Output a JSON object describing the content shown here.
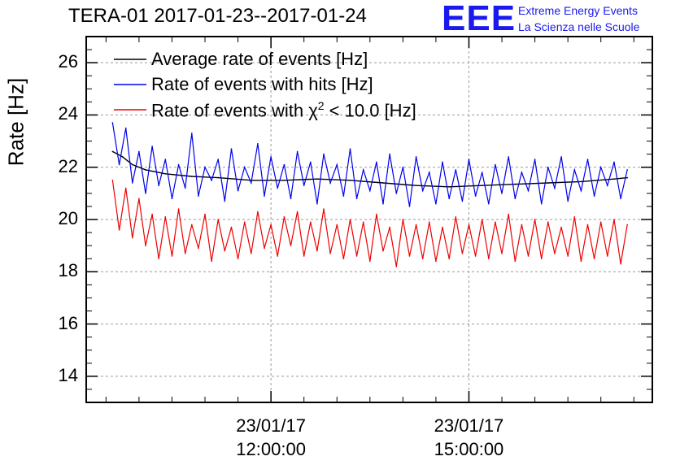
{
  "chart_data": {
    "type": "line",
    "title": "TERA-01 2017-01-23--2017-01-24",
    "ylabel": "Rate [Hz]",
    "xlabel": "",
    "ylim": [
      13.0,
      27.0
    ],
    "yticks": [
      "14",
      "16",
      "18",
      "20",
      "22",
      "24",
      "26"
    ],
    "xlim_hours": [
      9.2,
      17.78
    ],
    "xticks": [
      {
        "hour": 12.0,
        "date": "23/01/17",
        "time": "12:00:00"
      },
      {
        "hour": 15.0,
        "date": "23/01/17",
        "time": "15:00:00"
      }
    ],
    "grid": true,
    "legend_position": "top-left",
    "series": [
      {
        "name": "Average rate of events [Hz]",
        "color": "#000000",
        "x": [
          9.6,
          9.75,
          9.9,
          10.1,
          10.4,
          10.8,
          11.2,
          11.7,
          12.2,
          12.7,
          13.2,
          13.7,
          14.2,
          14.7,
          15.2,
          15.7,
          16.2,
          16.7,
          17.2,
          17.4
        ],
        "values": [
          22.6,
          22.4,
          22.1,
          21.9,
          21.75,
          21.65,
          21.6,
          21.5,
          21.5,
          21.55,
          21.5,
          21.4,
          21.3,
          21.25,
          21.3,
          21.35,
          21.4,
          21.45,
          21.55,
          21.6
        ]
      },
      {
        "name": "Rate of events with hits [Hz]",
        "color": "#0000ee",
        "x": [
          9.6,
          9.7,
          9.8,
          9.9,
          10.0,
          10.1,
          10.2,
          10.3,
          10.4,
          10.5,
          10.6,
          10.7,
          10.8,
          10.9,
          11.0,
          11.1,
          11.2,
          11.3,
          11.4,
          11.5,
          11.6,
          11.7,
          11.8,
          11.9,
          12.0,
          12.1,
          12.2,
          12.3,
          12.4,
          12.5,
          12.6,
          12.7,
          12.8,
          12.9,
          13.0,
          13.1,
          13.2,
          13.3,
          13.4,
          13.5,
          13.6,
          13.7,
          13.8,
          13.9,
          14.0,
          14.1,
          14.2,
          14.3,
          14.4,
          14.5,
          14.6,
          14.7,
          14.8,
          14.9,
          15.0,
          15.1,
          15.2,
          15.3,
          15.4,
          15.5,
          15.6,
          15.7,
          15.8,
          15.9,
          16.0,
          16.1,
          16.2,
          16.3,
          16.4,
          16.5,
          16.6,
          16.7,
          16.8,
          16.9,
          17.0,
          17.1,
          17.2,
          17.3,
          17.4
        ],
        "values": [
          23.7,
          22.1,
          23.5,
          21.4,
          22.6,
          21.0,
          22.8,
          21.3,
          22.3,
          20.8,
          22.1,
          21.2,
          23.3,
          20.9,
          22.0,
          21.5,
          22.3,
          20.7,
          22.7,
          21.1,
          22.0,
          21.4,
          22.9,
          20.9,
          22.4,
          21.2,
          22.1,
          20.8,
          22.6,
          21.3,
          22.2,
          20.6,
          22.5,
          21.4,
          22.1,
          20.9,
          22.7,
          20.8,
          21.9,
          21.1,
          22.2,
          20.6,
          22.5,
          21.0,
          22.0,
          20.5,
          22.4,
          21.1,
          21.8,
          20.6,
          22.2,
          20.8,
          21.9,
          20.7,
          22.3,
          20.9,
          21.8,
          20.6,
          22.1,
          21.0,
          22.4,
          20.8,
          21.8,
          21.1,
          22.3,
          20.6,
          22.0,
          21.2,
          22.4,
          20.7,
          21.9,
          21.1,
          22.3,
          20.9,
          22.0,
          21.3,
          22.2,
          20.8,
          21.9
        ]
      },
      {
        "name": "Rate of events with χ² < 10.0 [Hz]",
        "color": "#ee0000",
        "x": [
          9.6,
          9.7,
          9.8,
          9.9,
          10.0,
          10.1,
          10.2,
          10.3,
          10.4,
          10.5,
          10.6,
          10.7,
          10.8,
          10.9,
          11.0,
          11.1,
          11.2,
          11.3,
          11.4,
          11.5,
          11.6,
          11.7,
          11.8,
          11.9,
          12.0,
          12.1,
          12.2,
          12.3,
          12.4,
          12.5,
          12.6,
          12.7,
          12.8,
          12.9,
          13.0,
          13.1,
          13.2,
          13.3,
          13.4,
          13.5,
          13.6,
          13.7,
          13.8,
          13.9,
          14.0,
          14.1,
          14.2,
          14.3,
          14.4,
          14.5,
          14.6,
          14.7,
          14.8,
          14.9,
          15.0,
          15.1,
          15.2,
          15.3,
          15.4,
          15.5,
          15.6,
          15.7,
          15.8,
          15.9,
          16.0,
          16.1,
          16.2,
          16.3,
          16.4,
          16.5,
          16.6,
          16.7,
          16.8,
          16.9,
          17.0,
          17.1,
          17.2,
          17.3,
          17.4
        ],
        "values": [
          21.5,
          19.6,
          21.2,
          19.3,
          20.8,
          19.0,
          20.2,
          18.5,
          20.1,
          18.6,
          20.4,
          18.7,
          19.8,
          18.9,
          20.2,
          18.4,
          20.0,
          18.8,
          19.7,
          18.5,
          19.9,
          18.7,
          20.3,
          18.9,
          19.8,
          18.6,
          20.1,
          19.0,
          20.3,
          18.6,
          19.9,
          18.8,
          20.4,
          18.7,
          19.8,
          18.5,
          20.0,
          18.6,
          19.9,
          18.4,
          20.2,
          18.8,
          19.7,
          18.2,
          20.0,
          18.6,
          19.8,
          18.5,
          19.9,
          18.4,
          19.7,
          18.5,
          20.1,
          18.7,
          19.8,
          18.6,
          20.0,
          18.5,
          19.9,
          18.7,
          20.2,
          18.4,
          19.8,
          18.6,
          20.0,
          18.5,
          19.9,
          18.7,
          19.7,
          18.6,
          20.1,
          18.4,
          19.8,
          18.5,
          19.9,
          18.6,
          20.0,
          18.3,
          19.8
        ]
      }
    ]
  },
  "logo": {
    "mark": "EEE",
    "line1": "Extreme Energy Events",
    "line2": "La Scienza nelle Scuole"
  },
  "legend": {
    "avg_label": "Average rate of events [Hz]",
    "hits_label": "Rate of events with hits [Hz]",
    "chi_prefix": "Rate of events with χ",
    "chi_sup": "2",
    "chi_suffix": " < 10.0 [Hz]"
  }
}
